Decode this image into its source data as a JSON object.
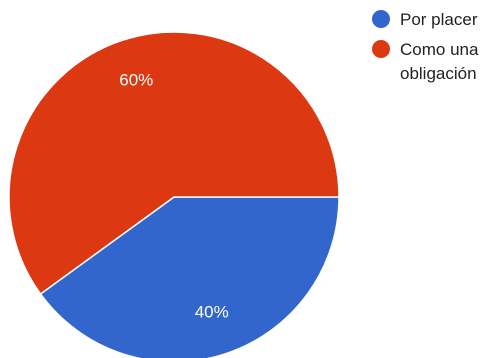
{
  "chart_data": {
    "type": "pie",
    "categories": [
      "Por placer",
      "Como una obligación"
    ],
    "values": [
      40,
      60
    ],
    "labels": [
      "40%",
      "60%"
    ],
    "colors": [
      "#3366cc",
      "#dc3912"
    ],
    "legend_position": "top-right",
    "legend": {
      "items": [
        {
          "label": "Por placer",
          "color": "#3366cc"
        },
        {
          "label": "Como una\nobligación",
          "color": "#dc3912"
        }
      ]
    }
  }
}
